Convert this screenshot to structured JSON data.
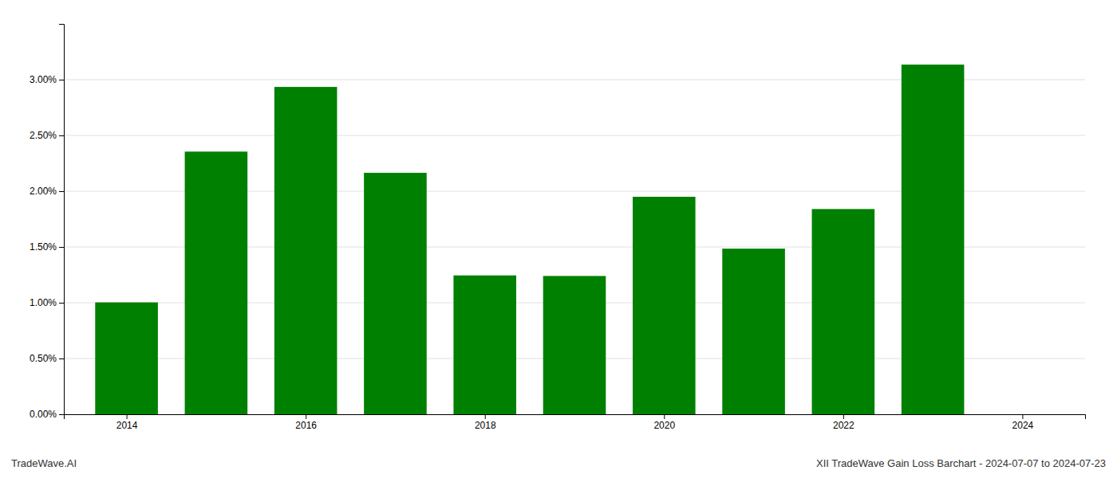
{
  "chart_data": {
    "type": "bar",
    "x": [
      2014,
      2015,
      2016,
      2017,
      2018,
      2019,
      2020,
      2021,
      2022,
      2023
    ],
    "values": [
      0.01003,
      0.02355,
      0.02935,
      0.02165,
      0.01245,
      0.0124,
      0.0195,
      0.01485,
      0.0184,
      0.03135
    ],
    "color": "#008000",
    "xlim": [
      2013.3,
      2024.7
    ],
    "xticks": [
      2014,
      2016,
      2018,
      2020,
      2022,
      2024
    ],
    "ylim": [
      0.0,
      0.035
    ],
    "yticks": [
      {
        "value": 0.0,
        "label": "0.00%"
      },
      {
        "value": 0.005,
        "label": "0.50%"
      },
      {
        "value": 0.01,
        "label": "1.00%"
      },
      {
        "value": 0.015,
        "label": "1.50%"
      },
      {
        "value": 0.02,
        "label": "2.00%"
      },
      {
        "value": 0.025,
        "label": "2.50%"
      },
      {
        "value": 0.03,
        "label": "3.00%"
      }
    ],
    "grid": true,
    "annotations": [
      "TradeWave.AI",
      "XII TradeWave Gain Loss Barchart - 2024-07-07 to 2024-07-23"
    ]
  }
}
